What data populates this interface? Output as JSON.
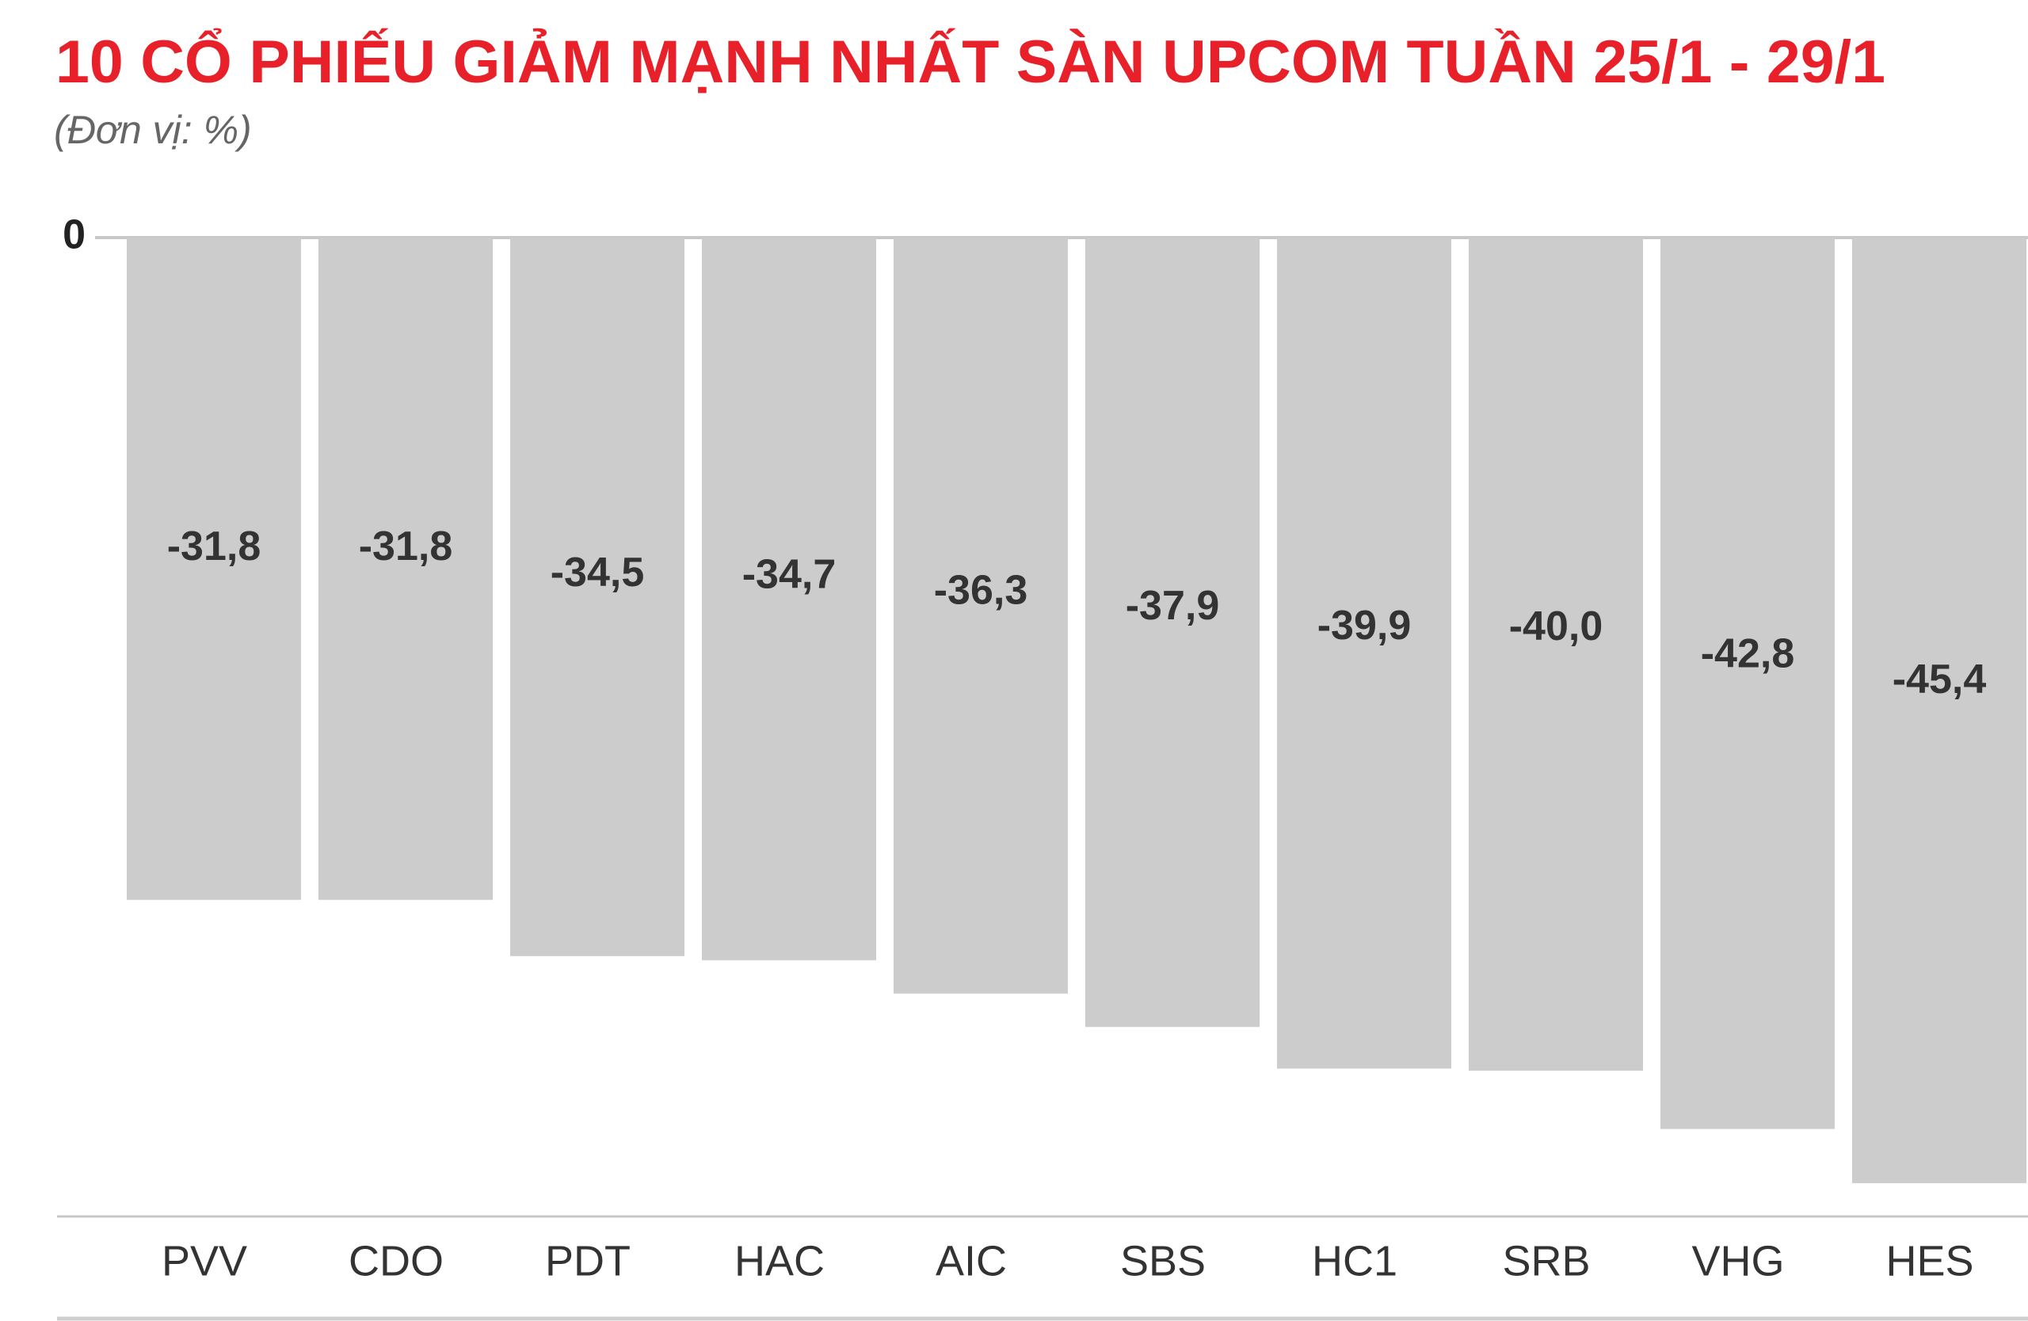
{
  "chart_data": {
    "type": "bar",
    "title": "10 CỔ PHIẾU GIẢM MẠNH NHẤT SÀN UPCOM TUẦN 25/1 - 29/1",
    "subtitle": "(Đơn vị: %)",
    "categories": [
      "PVV",
      "CDO",
      "PDT",
      "HAC",
      "AIC",
      "SBS",
      "HC1",
      "SRB",
      "VHG",
      "HES"
    ],
    "values": [
      -31.8,
      -31.8,
      -34.5,
      -34.7,
      -36.3,
      -37.9,
      -39.9,
      -40.0,
      -42.8,
      -45.4
    ],
    "value_labels": [
      "-31,8",
      "-31,8",
      "-34,5",
      "-34,7",
      "-36,3",
      "-37,9",
      "-39,9",
      "-40,0",
      "-42,8",
      "-45,4"
    ],
    "color": "#cccccc",
    "ylim": [
      -47,
      0
    ],
    "yticks": [
      0
    ],
    "grid": true
  }
}
